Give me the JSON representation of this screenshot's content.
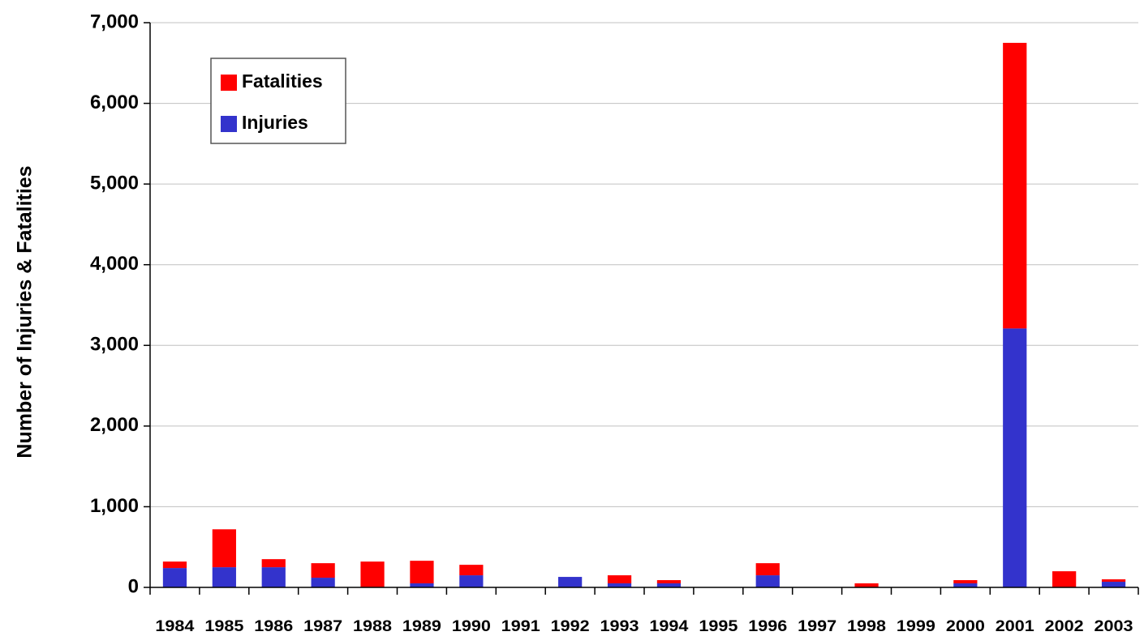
{
  "chart_data": {
    "type": "stacked_bar",
    "ylabel": "Number of Injuries & Fatalities",
    "categories": [
      "1984",
      "1985",
      "1986",
      "1987",
      "1988",
      "1989",
      "1990",
      "1991",
      "1992",
      "1993",
      "1994",
      "1995",
      "1996",
      "1997",
      "1998",
      "1999",
      "2000",
      "2001",
      "2002",
      "2003"
    ],
    "series": [
      {
        "name": "Injuries",
        "color": "#3333cc",
        "values": [
          240,
          250,
          250,
          120,
          0,
          50,
          150,
          0,
          130,
          50,
          50,
          0,
          150,
          0,
          0,
          0,
          50,
          3210,
          0,
          70
        ]
      },
      {
        "name": "Fatalities",
        "color": "#ff0000",
        "values": [
          80,
          470,
          100,
          180,
          320,
          280,
          130,
          0,
          0,
          100,
          40,
          0,
          150,
          0,
          50,
          0,
          40,
          3540,
          200,
          30
        ]
      }
    ],
    "ylim": [
      0,
      7000
    ],
    "yticks": [
      0,
      {
        "value": 1000,
        "label": "1,000"
      },
      {
        "value": 2000,
        "label": "2,000"
      },
      {
        "value": 3000,
        "label": "3,000"
      },
      {
        "value": 4000,
        "label": "4,000"
      },
      {
        "value": 5000,
        "label": "5,000"
      },
      {
        "value": 6000,
        "label": "6,000"
      },
      {
        "value": 7000,
        "label": "7,000"
      }
    ],
    "grid": true,
    "legend": "top-left"
  }
}
